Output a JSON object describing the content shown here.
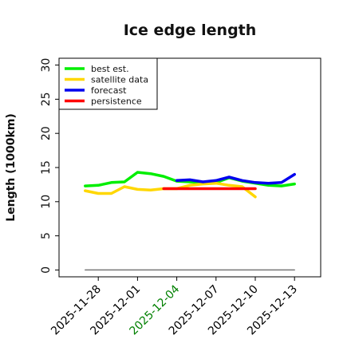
{
  "chart_data": {
    "type": "line",
    "title": "Ice edge length",
    "xlabel": "",
    "ylabel": "Length (1000km)",
    "xlim": [
      "2025-11-25",
      "2025-12-15"
    ],
    "ylim": [
      -1,
      31
    ],
    "yticks": [
      0,
      5,
      10,
      15,
      20,
      25,
      30
    ],
    "xticks": [
      {
        "date": "2025-11-28",
        "label": "2025-11-28",
        "color": "#000000"
      },
      {
        "date": "2025-12-01",
        "label": "2025-12-01",
        "color": "#000000"
      },
      {
        "date": "2025-12-04",
        "label": "2025-12-04",
        "color": "#008000"
      },
      {
        "date": "2025-12-07",
        "label": "2025-12-07",
        "color": "#000000"
      },
      {
        "date": "2025-12-10",
        "label": "2025-12-10",
        "color": "#000000"
      },
      {
        "date": "2025-12-13",
        "label": "2025-12-13",
        "color": "#000000"
      }
    ],
    "grid": false,
    "legend_position": "top-left",
    "series": [
      {
        "name": "best est.",
        "color": "#00ee00",
        "points": [
          [
            "2025-11-27",
            12.3
          ],
          [
            "2025-11-28",
            12.4
          ],
          [
            "2025-11-29",
            12.8
          ],
          [
            "2025-11-30",
            12.9
          ],
          [
            "2025-12-01",
            14.3
          ],
          [
            "2025-12-02",
            14.1
          ],
          [
            "2025-12-03",
            13.7
          ],
          [
            "2025-12-04",
            13.0
          ],
          [
            "2025-12-05",
            12.9
          ],
          [
            "2025-12-06",
            12.8
          ],
          [
            "2025-12-07",
            12.8
          ],
          [
            "2025-12-08",
            13.5
          ],
          [
            "2025-12-09",
            13.0
          ],
          [
            "2025-12-10",
            12.7
          ],
          [
            "2025-12-11",
            12.4
          ],
          [
            "2025-12-12",
            12.3
          ],
          [
            "2025-12-13",
            12.6
          ]
        ]
      },
      {
        "name": "satellite data",
        "color": "#ffd700",
        "points": [
          [
            "2025-11-27",
            11.6
          ],
          [
            "2025-11-28",
            11.2
          ],
          [
            "2025-11-29",
            11.2
          ],
          [
            "2025-11-30",
            12.2
          ],
          [
            "2025-12-01",
            11.8
          ],
          [
            "2025-12-02",
            11.7
          ],
          [
            "2025-12-03",
            11.9
          ],
          [
            "2025-12-04",
            11.9
          ],
          [
            "2025-12-05",
            12.4
          ],
          [
            "2025-12-06",
            12.6
          ],
          [
            "2025-12-07",
            12.7
          ],
          [
            "2025-12-08",
            12.4
          ],
          [
            "2025-12-09",
            12.2
          ],
          [
            "2025-12-10",
            10.7
          ]
        ]
      },
      {
        "name": "forecast",
        "color": "#0000ee",
        "points": [
          [
            "2025-12-04",
            13.1
          ],
          [
            "2025-12-05",
            13.2
          ],
          [
            "2025-12-06",
            12.9
          ],
          [
            "2025-12-07",
            13.1
          ],
          [
            "2025-12-08",
            13.6
          ],
          [
            "2025-12-09",
            13.1
          ],
          [
            "2025-12-10",
            12.8
          ],
          [
            "2025-12-11",
            12.7
          ],
          [
            "2025-12-12",
            12.8
          ],
          [
            "2025-12-13",
            14.0
          ]
        ]
      },
      {
        "name": "persistence",
        "color": "#ff0000",
        "points": [
          [
            "2025-12-03",
            11.9
          ],
          [
            "2025-12-10",
            11.9
          ]
        ]
      },
      {
        "color": "#777777",
        "points": [
          [
            "2025-11-27",
            0
          ],
          [
            "2025-12-13",
            0
          ]
        ]
      }
    ]
  }
}
